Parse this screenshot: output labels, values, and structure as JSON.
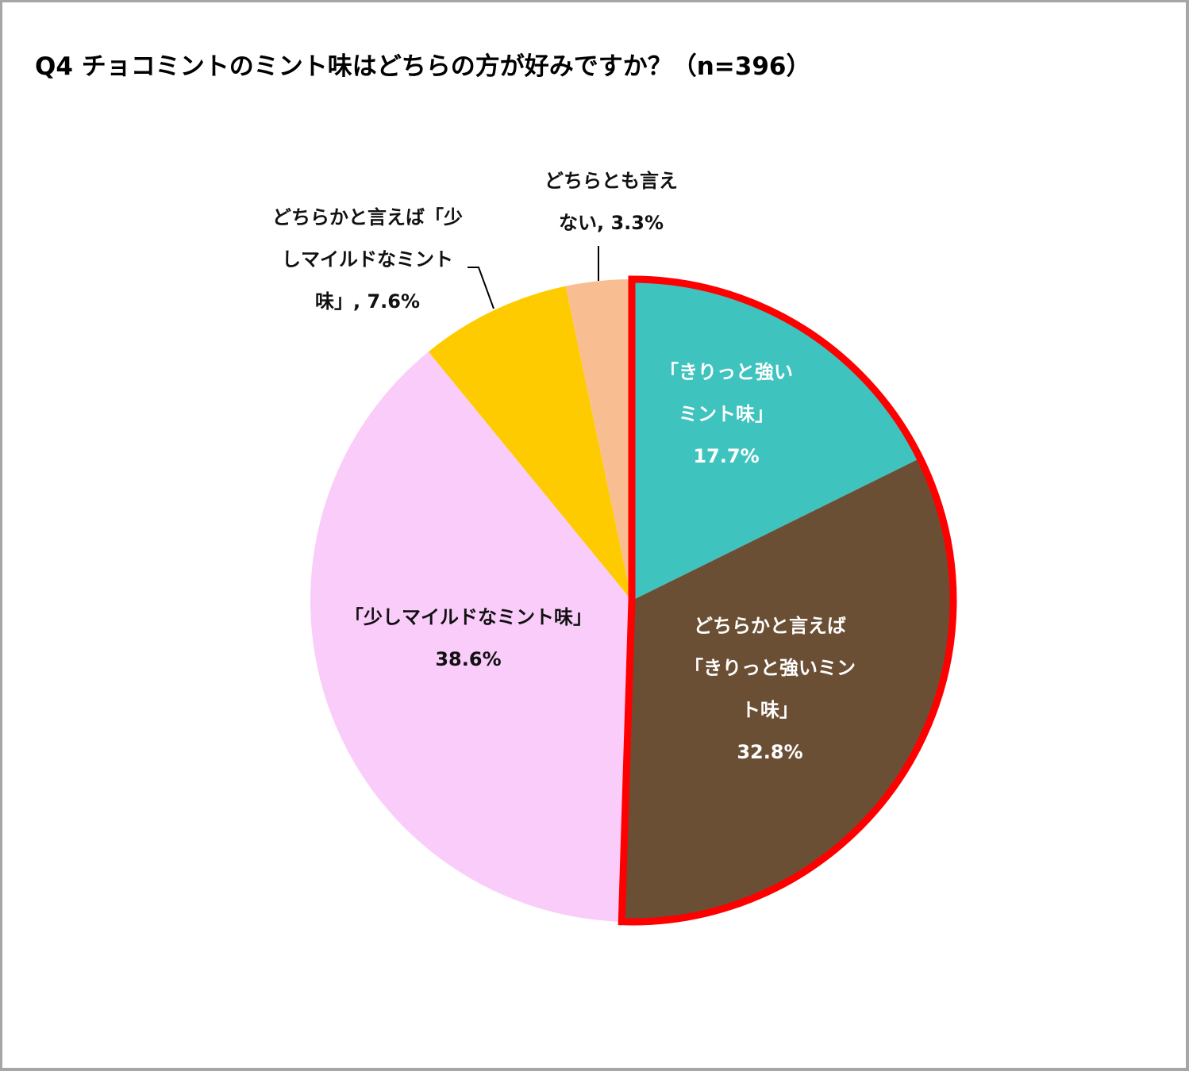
{
  "title": "Q4 チョコミントのミント味はどちらの方が好みですか？（n=396）",
  "chart_data": {
    "type": "pie",
    "title": "Q4 チョコミントのミント味はどちらの方が好みですか？（n=396）",
    "n": 396,
    "start_angle": "12 o'clock, clockwise",
    "slices": [
      {
        "label": "「きりっと強いミント味」",
        "value": 17.7,
        "color": "#3EC3BE"
      },
      {
        "label": "どちらかと言えば「きりっと強いミント味」",
        "value": 32.8,
        "color": "#6B4F35"
      },
      {
        "label": "「少しマイルドなミント味」",
        "value": 38.6,
        "color": "#FACCFA"
      },
      {
        "label": "どちらかと言えば「少しマイルドなミント味」",
        "value": 7.6,
        "color": "#FECB00"
      },
      {
        "label": "どちらとも言えない",
        "value": 3.3,
        "color": "#F8BE92"
      }
    ],
    "highlight": {
      "slices": [
        0,
        1
      ],
      "outline_color": "#FF0000"
    },
    "legend": "none (data labels on slices)"
  },
  "labels": {
    "strong": {
      "line1": "「きりっと強い",
      "line2": "ミント味」",
      "value": "17.7%"
    },
    "rather_strong": {
      "line1": "どちらかと言えば",
      "line2": "「きりっと強いミン",
      "line3": "ト味」",
      "value": "32.8%"
    },
    "mild": {
      "line1": "「少しマイルドなミント味」",
      "value": "38.6%"
    },
    "rather_mild": {
      "line1": "どちらかと言えば「少",
      "line2": "しマイルドなミント",
      "line3": "味」, 7.6%"
    },
    "neither": {
      "line1": "どちらとも言え",
      "line2": "ない, 3.3%"
    }
  }
}
